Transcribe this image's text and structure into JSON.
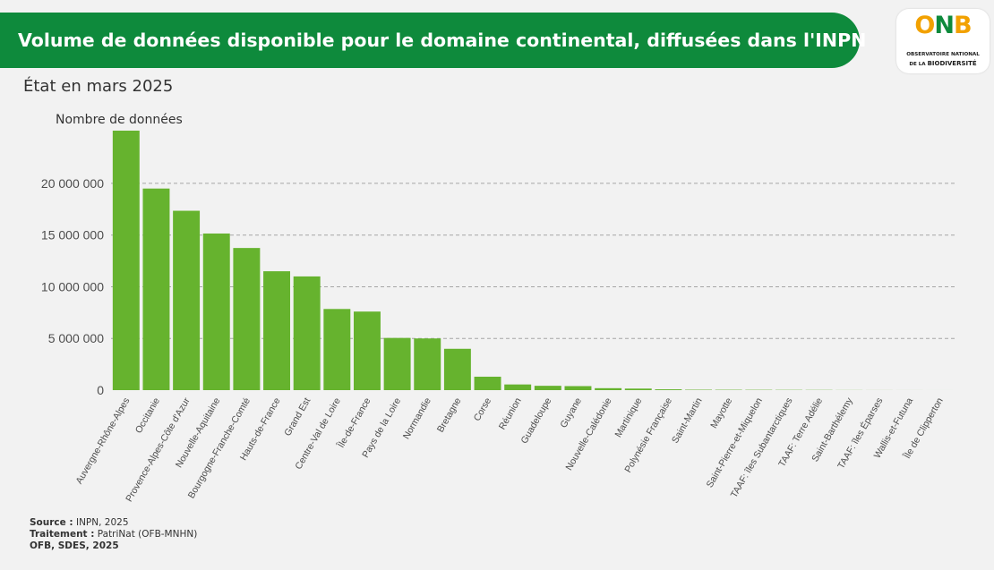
{
  "header": {
    "title": "Volume de données disponible pour le domaine continental, diffusées dans l'INPN"
  },
  "logo": {
    "mark": "ONB",
    "line1": "OBSERVATOIRE NATIONAL",
    "line2_prefix": "DE LA ",
    "line2_bold": "BIODIVERSITÉ",
    "colors": {
      "o": "#f2a100",
      "n": "#0e8a3c",
      "b": "#f2a100"
    }
  },
  "subtitle": "État en mars 2025",
  "footer": {
    "source_label": "Source :",
    "source_value": " INPN, 2025",
    "treatment_label": "Traitement :",
    "treatment_value": " PatriNat (OFB-MNHN)",
    "credit": "OFB, SDES, 2025"
  },
  "chart_data": {
    "type": "bar",
    "ylabel": "Nombre de données",
    "ylim": [
      0,
      25000000
    ],
    "yticks": [
      0,
      5000000,
      10000000,
      15000000,
      20000000
    ],
    "ytick_labels": [
      "0",
      "5 000 000",
      "10 000 000",
      "15 000 000",
      "20 000 000"
    ],
    "grid": "horizontal dashed",
    "bar_color": "#66b32e",
    "categories": [
      "Auvergne-Rhône-Alpes",
      "Occitanie",
      "Provence-Alpes-Côte d'Azur",
      "Nouvelle-Aquitaine",
      "Bourgogne-Franche-Comté",
      "Hauts-de-France",
      "Grand Est",
      "Centre-Val de Loire",
      "Île-de-France",
      "Pays de la Loire",
      "Normandie",
      "Bretagne",
      "Corse",
      "Réunion",
      "Guadeloupe",
      "Guyane",
      "Nouvelle-Calédonie",
      "Martinique",
      "Polynésie Française",
      "Saint-Martin",
      "Mayotte",
      "Saint-Pierre-et-Miquelon",
      "TAAF: îles Subantarctiques",
      "TAAF: Terre Adélie",
      "Saint-Barthélemy",
      "TAAF: îles Éparses",
      "Wallis-et-Futuna",
      "Île de Clipperton"
    ],
    "values": [
      25100000,
      19500000,
      17350000,
      15150000,
      13750000,
      11500000,
      11000000,
      7850000,
      7600000,
      5050000,
      5000000,
      4000000,
      1300000,
      550000,
      420000,
      390000,
      190000,
      150000,
      80000,
      40000,
      35000,
      30000,
      25000,
      20000,
      10000,
      5000,
      3000,
      1000
    ]
  }
}
